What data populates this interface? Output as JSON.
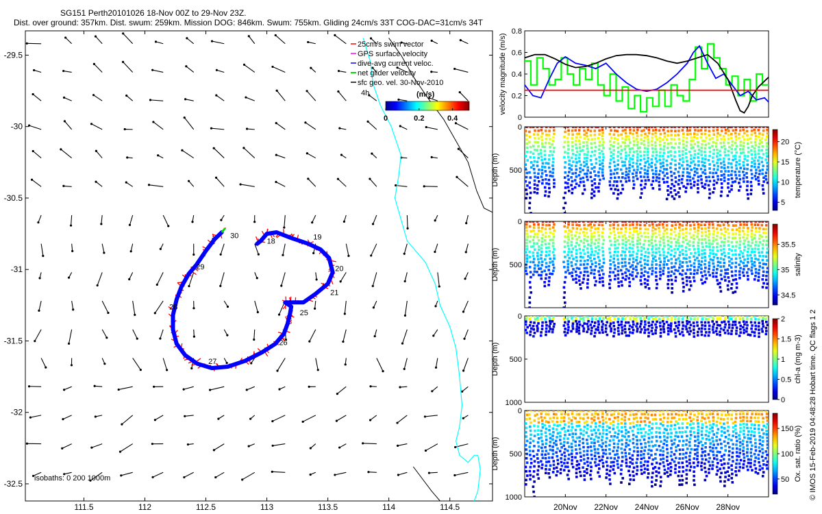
{
  "header": {
    "line1": "SG151 Perth20101026 18-Nov 00Z to 29-Nov 23Z.",
    "line2": "Dist. over ground: 357km. Dist. swum: 259km. Mission DOG: 846km. Swum: 755km. Gliding 24cm/s 33T COG-DAC=31cm/s 34T"
  },
  "credit": "© IMOS 15-Feb-2019 04:48:28 Hobart time. QC flags 1 2",
  "colors": {
    "track_current": "#0000ff",
    "swim_vector": "#ff0000",
    "net_velocity": "#00dd00",
    "coast": "#00ffff",
    "isobath": "#000000",
    "vectors": "#000000"
  },
  "chart_data": [
    {
      "id": "map",
      "type": "quiver-map",
      "xlim": [
        111.02,
        114.85
      ],
      "ylim": [
        -32.62,
        -29.33
      ],
      "xticks": [
        111.5,
        112,
        112.5,
        113,
        113.5,
        114,
        114.5
      ],
      "xtick_labels": [
        "111.5",
        "112",
        "112.5",
        "113",
        "113.5",
        "114",
        "114.5"
      ],
      "yticks": [
        -29.5,
        -30,
        -30.5,
        -31,
        -31.5,
        -32,
        -32.5
      ],
      "ytick_labels": [
        "-29.5",
        "-30",
        "-30.5",
        "-31",
        "-31.5",
        "-32",
        "-32.5"
      ],
      "legend": {
        "items": [
          {
            "label": "25cm/s swim vector",
            "color": "#ff0000",
            "marker": "arrow"
          },
          {
            "label": "GPS surface velocity",
            "color": "#ff00ff",
            "marker": "arrow"
          },
          {
            "label": "dive-avg current veloc.",
            "color": "#0000ff",
            "marker": "arrow"
          },
          {
            "label": "net glider velocity",
            "color": "#00dd00",
            "marker": "arrow"
          },
          {
            "label": "sfc geo. vel. 30-Nov-2010",
            "color": "#000000",
            "marker": "arrow"
          }
        ],
        "extra_label": "4h"
      },
      "colorbar": {
        "title": "(m/s)",
        "ticks": [
          0,
          0.2,
          0.4
        ],
        "tick_labels": [
          "0",
          "0.2",
          "0.4"
        ],
        "range": [
          0,
          0.5
        ]
      },
      "isobath_label": "isobaths: 0   200  1000m",
      "track": [
        [
          112.63,
          -30.74
        ],
        [
          112.57,
          -30.79
        ],
        [
          112.5,
          -30.87
        ],
        [
          112.42,
          -30.97
        ],
        [
          112.36,
          -31.03
        ],
        [
          112.3,
          -31.12
        ],
        [
          112.26,
          -31.21
        ],
        [
          112.23,
          -31.32
        ],
        [
          112.23,
          -31.42
        ],
        [
          112.26,
          -31.52
        ],
        [
          112.33,
          -31.6
        ],
        [
          112.43,
          -31.66
        ],
        [
          112.55,
          -31.69
        ],
        [
          112.68,
          -31.68
        ],
        [
          112.82,
          -31.64
        ],
        [
          112.96,
          -31.58
        ],
        [
          113.07,
          -31.52
        ],
        [
          113.14,
          -31.45
        ],
        [
          113.17,
          -31.38
        ],
        [
          113.19,
          -31.31
        ],
        [
          113.2,
          -31.26
        ],
        [
          113.15,
          -31.23
        ],
        [
          113.2,
          -31.23
        ],
        [
          113.3,
          -31.23
        ],
        [
          113.4,
          -31.17
        ],
        [
          113.5,
          -31.1
        ],
        [
          113.54,
          -31.02
        ],
        [
          113.51,
          -30.92
        ],
        [
          113.44,
          -30.86
        ],
        [
          113.34,
          -30.82
        ],
        [
          113.2,
          -30.78
        ],
        [
          113.08,
          -30.74
        ],
        [
          113.0,
          -30.75
        ],
        [
          112.95,
          -30.8
        ],
        [
          112.92,
          -30.82
        ]
      ],
      "day_labels": [
        {
          "text": "18",
          "lon": 113.0,
          "lat": -30.82
        },
        {
          "text": "19",
          "lon": 113.38,
          "lat": -30.79
        },
        {
          "text": "20",
          "lon": 113.56,
          "lat": -31.01
        },
        {
          "text": "21",
          "lon": 113.52,
          "lat": -31.18
        },
        {
          "text": "25",
          "lon": 113.27,
          "lat": -31.32
        },
        {
          "text": "26",
          "lon": 113.1,
          "lat": -31.53
        },
        {
          "text": "27",
          "lon": 112.52,
          "lat": -31.66
        },
        {
          "text": "28",
          "lon": 112.2,
          "lat": -31.28
        },
        {
          "text": "29",
          "lon": 112.42,
          "lat": -31.0
        },
        {
          "text": "30",
          "lon": 112.7,
          "lat": -30.78
        }
      ],
      "coastline": [
        [
          113.79,
          -29.38
        ],
        [
          113.85,
          -29.55
        ],
        [
          113.87,
          -29.7
        ],
        [
          113.93,
          -29.85
        ],
        [
          114.02,
          -30.0
        ],
        [
          114.1,
          -30.2
        ],
        [
          114.08,
          -30.35
        ],
        [
          114.05,
          -30.5
        ],
        [
          114.1,
          -30.65
        ],
        [
          114.15,
          -30.8
        ],
        [
          114.3,
          -30.95
        ],
        [
          114.38,
          -31.1
        ],
        [
          114.42,
          -31.25
        ],
        [
          114.5,
          -31.4
        ],
        [
          114.55,
          -31.55
        ],
        [
          114.58,
          -31.75
        ],
        [
          114.6,
          -31.95
        ],
        [
          114.58,
          -32.1
        ],
        [
          114.55,
          -32.2
        ],
        [
          114.58,
          -32.3
        ],
        [
          114.65,
          -32.35
        ],
        [
          114.7,
          -32.3
        ],
        [
          114.73,
          -32.3
        ],
        [
          114.75,
          -32.4
        ],
        [
          114.73,
          -32.55
        ],
        [
          114.7,
          -32.62
        ]
      ],
      "isobath_1000": [
        [
          114.0,
          -29.38
        ],
        [
          114.1,
          -29.5
        ],
        [
          114.2,
          -29.65
        ],
        [
          114.32,
          -29.8
        ],
        [
          114.45,
          -29.95
        ],
        [
          114.55,
          -30.1
        ],
        [
          114.65,
          -30.25
        ],
        [
          114.72,
          -30.45
        ],
        [
          114.78,
          -30.57
        ],
        [
          114.85,
          -30.6
        ]
      ],
      "isobath_200": [
        [
          114.2,
          -32.38
        ],
        [
          114.35,
          -32.55
        ],
        [
          114.42,
          -32.62
        ]
      ],
      "vector_grid": {
        "lon_start": 111.15,
        "lon_step": 0.25,
        "lon_count": 15,
        "lat_start": -29.42,
        "lat_step": -0.2,
        "lat_count": 17
      }
    },
    {
      "id": "velocity",
      "type": "line",
      "ylabel": "velocity magnitude (m/s)",
      "xlim": [
        18,
        30
      ],
      "ylim": [
        0,
        0.8
      ],
      "yticks": [
        0,
        0.2,
        0.4,
        0.6,
        0.8
      ],
      "ytick_labels": [
        "0",
        "0.2",
        "0.4",
        "0.6",
        "0.8"
      ],
      "series": [
        {
          "name": "net glider velocity",
          "color": "#00ff00",
          "style": "step",
          "x": [
            18.0,
            18.3,
            18.6,
            18.9,
            19.2,
            19.5,
            19.8,
            20.1,
            20.4,
            20.7,
            21.0,
            21.3,
            21.6,
            21.9,
            22.2,
            22.5,
            22.8,
            23.1,
            23.4,
            23.7,
            24.0,
            24.3,
            24.6,
            24.9,
            25.2,
            25.5,
            25.8,
            26.1,
            26.4,
            26.7,
            27.0,
            27.3,
            27.6,
            27.9,
            28.2,
            28.5,
            28.8,
            29.1,
            29.4,
            29.7
          ],
          "y": [
            0.52,
            0.3,
            0.55,
            0.45,
            0.3,
            0.35,
            0.55,
            0.4,
            0.3,
            0.45,
            0.35,
            0.5,
            0.3,
            0.2,
            0.4,
            0.15,
            0.28,
            0.08,
            0.2,
            0.05,
            0.18,
            0.1,
            0.25,
            0.1,
            0.3,
            0.2,
            0.15,
            0.35,
            0.65,
            0.45,
            0.68,
            0.55,
            0.45,
            0.3,
            0.38,
            0.2,
            0.35,
            0.15,
            0.4,
            0.3
          ]
        },
        {
          "name": "dive-avg current",
          "color": "#0000ff",
          "style": "line",
          "x": [
            18.0,
            18.4,
            18.8,
            19.2,
            19.6,
            20.0,
            20.5,
            21.0,
            21.5,
            22.0,
            22.5,
            23.0,
            23.5,
            24.0,
            24.5,
            25.0,
            25.5,
            26.0,
            26.3,
            26.6,
            27.0,
            27.4,
            27.8,
            28.2,
            28.6,
            29.0,
            29.4,
            29.8,
            30.0
          ],
          "y": [
            0.3,
            0.2,
            0.18,
            0.35,
            0.5,
            0.56,
            0.5,
            0.48,
            0.45,
            0.5,
            0.4,
            0.32,
            0.26,
            0.24,
            0.26,
            0.32,
            0.4,
            0.5,
            0.6,
            0.66,
            0.5,
            0.36,
            0.4,
            0.3,
            0.2,
            0.24,
            0.16,
            0.18,
            0.14
          ]
        },
        {
          "name": "sfc geo. vel.",
          "color": "#000000",
          "style": "line",
          "x": [
            18.0,
            18.5,
            19.0,
            19.5,
            20.0,
            20.5,
            21.0,
            21.5,
            22.0,
            22.5,
            23.0,
            23.5,
            24.0,
            24.5,
            25.0,
            25.5,
            26.0,
            26.5,
            27.0,
            27.5,
            28.0,
            28.2,
            28.4,
            28.6,
            28.8,
            29.0,
            29.2,
            29.5,
            30.0
          ],
          "y": [
            0.55,
            0.58,
            0.58,
            0.54,
            0.49,
            0.46,
            0.47,
            0.5,
            0.54,
            0.57,
            0.58,
            0.58,
            0.57,
            0.55,
            0.52,
            0.5,
            0.52,
            0.55,
            0.58,
            0.5,
            0.35,
            0.25,
            0.15,
            0.06,
            0.04,
            0.1,
            0.2,
            0.28,
            0.37
          ]
        },
        {
          "name": "25cm/s reference",
          "color": "#ff0000",
          "style": "line",
          "x": [
            18.0,
            30.0
          ],
          "y": [
            0.25,
            0.25
          ]
        }
      ]
    },
    {
      "id": "temperature",
      "type": "scatter-section",
      "ylabel": "Depth (m)",
      "cbar_label": "temperature (°C)",
      "cbar_ticks": [
        5,
        10,
        15,
        20
      ],
      "cbar_tick_labels": [
        "5",
        "10",
        "15",
        "20"
      ],
      "cbar_range": [
        3,
        23
      ],
      "ylim": [
        0,
        1000
      ],
      "yticks": [
        0,
        500
      ],
      "ytick_labels": [
        "0",
        "500"
      ],
      "max_depth": 800,
      "gaps": [
        [
          19.5,
          19.85
        ],
        [
          21.9,
          22.1
        ]
      ],
      "deep_dives": [
        [
          18.3,
          1000
        ],
        [
          19.95,
          1000
        ]
      ]
    },
    {
      "id": "salinity",
      "type": "scatter-section",
      "ylabel": "Depth (m)",
      "cbar_label": "salinity",
      "cbar_ticks": [
        34.5,
        35,
        35.5
      ],
      "cbar_tick_labels": [
        "34.5",
        "35",
        "35.5"
      ],
      "cbar_range": [
        34.3,
        35.9
      ],
      "ylim": [
        0,
        1000
      ],
      "yticks": [
        0,
        500
      ],
      "ytick_labels": [
        "0",
        "500"
      ],
      "max_depth": 800,
      "gaps": [
        [
          19.5,
          19.85
        ],
        [
          21.9,
          22.1
        ]
      ],
      "deep_dives": [
        [
          18.3,
          1000
        ],
        [
          19.95,
          1000
        ]
      ]
    },
    {
      "id": "chla",
      "type": "scatter-section",
      "ylabel": "Depth (m)",
      "cbar_label": "chl-a (mg m-3)",
      "cbar_ticks": [
        0,
        0.5,
        1,
        1.5,
        2
      ],
      "cbar_tick_labels": [
        "0",
        "0.5",
        "1",
        "1.5",
        "2"
      ],
      "cbar_range": [
        0,
        2
      ],
      "ylim": [
        0,
        1000
      ],
      "yticks": [
        0,
        500,
        1000
      ],
      "ytick_labels": [
        "0",
        "500",
        "1000"
      ],
      "max_depth": 230,
      "gaps": [
        [
          19.5,
          19.85
        ]
      ],
      "deep_dives": []
    },
    {
      "id": "oxygen",
      "type": "scatter-section",
      "ylabel": "Depth (m)",
      "cbar_label": "Ox. sat. ratio (%)",
      "cbar_ticks": [
        50,
        100,
        150
      ],
      "cbar_tick_labels": [
        "50",
        "100",
        "150"
      ],
      "cbar_range": [
        20,
        180
      ],
      "ylim": [
        0,
        1000
      ],
      "yticks": [
        0,
        500,
        1000
      ],
      "ytick_labels": [
        "0",
        "500",
        "1000"
      ],
      "max_depth": 850,
      "gaps": [],
      "deep_dives": [
        [
          18.45,
          1000
        ]
      ]
    }
  ],
  "time_axis": {
    "xlim": [
      18,
      30
    ],
    "ticks": [
      20,
      22,
      24,
      26,
      28
    ],
    "tick_labels": [
      "20Nov",
      "22Nov",
      "24Nov",
      "26Nov",
      "28Nov"
    ]
  }
}
